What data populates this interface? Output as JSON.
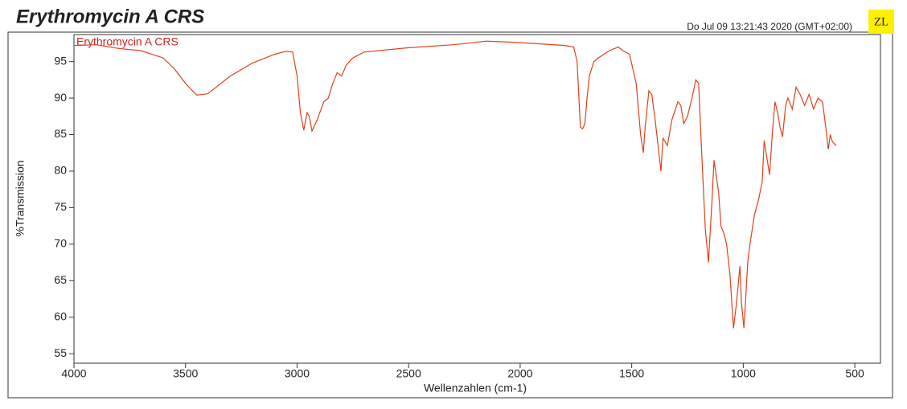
{
  "chart_data": {
    "type": "line",
    "title": "Erythromycin A CRS",
    "timestamp": "Do Jul 09 13:21:43 2020 (GMT+02:00)",
    "badge": "ZL",
    "xlabel": "Wellenzahlen (cm-1)",
    "ylabel": "%Transmission",
    "xlim": [
      4000,
      385
    ],
    "ylim": [
      53.7,
      98.7
    ],
    "xticks": [
      4000,
      3500,
      3000,
      2500,
      2000,
      1500,
      1000,
      500
    ],
    "yticks": [
      55,
      60,
      65,
      70,
      75,
      80,
      85,
      90,
      95
    ],
    "series": [
      {
        "name": "Erythromycin A CRS",
        "color": "#e0401a",
        "x": [
          4000,
          3900,
          3800,
          3700,
          3600,
          3550,
          3500,
          3450,
          3400,
          3350,
          3300,
          3200,
          3100,
          3050,
          3020,
          3000,
          2985,
          2970,
          2955,
          2945,
          2933,
          2910,
          2880,
          2860,
          2840,
          2820,
          2800,
          2780,
          2750,
          2700,
          2500,
          2300,
          2150,
          2000,
          1800,
          1760,
          1745,
          1730,
          1720,
          1710,
          1700,
          1690,
          1670,
          1650,
          1600,
          1560,
          1540,
          1510,
          1480,
          1460,
          1448,
          1440,
          1423,
          1410,
          1395,
          1369,
          1360,
          1350,
          1340,
          1320,
          1293,
          1280,
          1267,
          1250,
          1230,
          1213,
          1200,
          1190,
          1170,
          1156,
          1140,
          1131,
          1110,
          1100,
          1087,
          1075,
          1060,
          1044,
          1030,
          1015,
          1008,
          997,
          990,
          980,
          970,
          950,
          932,
          915,
          906,
          895,
          882,
          870,
          858,
          846,
          835,
          824,
          810,
          800,
          780,
          763,
          745,
          725,
          705,
          685,
          665,
          645,
          630,
          619,
          610,
          600,
          583
        ],
        "values": [
          97.2,
          97.3,
          96.8,
          96.5,
          95.5,
          94,
          92,
          90.4,
          90.6,
          91.8,
          93,
          94.8,
          96,
          96.4,
          96.3,
          93,
          88,
          85.6,
          88,
          87.5,
          85.5,
          87,
          89.5,
          90,
          92,
          93.5,
          93,
          94.5,
          95.5,
          96.3,
          96.9,
          97.3,
          97.8,
          97.6,
          97.2,
          97,
          95,
          86,
          85.8,
          86.5,
          90,
          93,
          95,
          95.5,
          96.5,
          97,
          96.5,
          96,
          92,
          85,
          82.5,
          86,
          91,
          90.5,
          87,
          80,
          84.5,
          84,
          83.5,
          87,
          89.5,
          89,
          86.5,
          87.5,
          90,
          92.5,
          92,
          85,
          72,
          67.5,
          76,
          81.5,
          77,
          72.5,
          71.5,
          70,
          66,
          58.5,
          62,
          67,
          62,
          58.5,
          62,
          67.5,
          70,
          74,
          76,
          78.5,
          84.2,
          82,
          79.5,
          85,
          89.5,
          88,
          86,
          84.7,
          89,
          90,
          88.5,
          91.5,
          90.5,
          89,
          90.5,
          88.5,
          90,
          89.5,
          86,
          83,
          85,
          84,
          83.5
        ]
      }
    ]
  }
}
